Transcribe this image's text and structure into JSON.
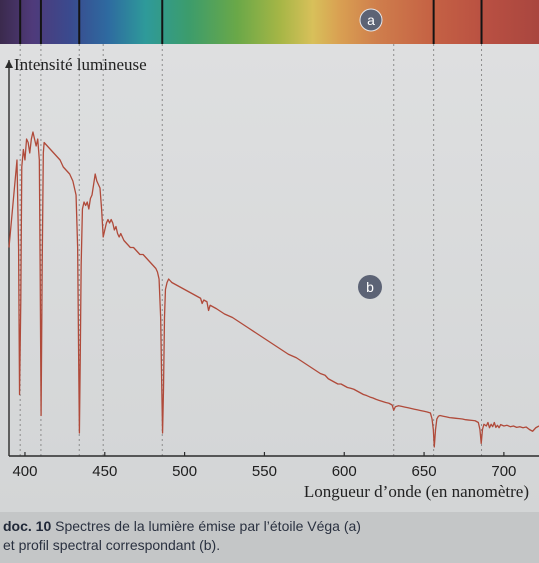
{
  "chart_data": {
    "type": "line",
    "ylabel": "Intensité lumineuse",
    "xlabel": "Longueur d’onde (en nanomètre)",
    "xlim": [
      390,
      722
    ],
    "x_ticks": [
      400,
      450,
      500,
      550,
      600,
      650,
      700
    ],
    "y_axis_ticks": false,
    "grid": false,
    "colors": {
      "curve": "#b04a3a",
      "axis": "#2b2b2b",
      "guide": "#8c8c8c",
      "marker": "#5a6475"
    },
    "spectrum_band": {
      "label": "a",
      "absorption_lines_nm": [
        397,
        410,
        434,
        486,
        656,
        686
      ]
    },
    "guide_lines_nm": [
      397,
      410,
      434,
      449,
      486,
      631,
      656,
      686
    ],
    "curve_label": "b",
    "series": [
      {
        "points": [
          [
            390,
            0.55
          ],
          [
            393,
            0.7
          ],
          [
            395,
            0.8
          ],
          [
            396,
            0.55
          ],
          [
            396.6,
            0.13
          ],
          [
            397.4,
            0.4
          ],
          [
            398,
            0.78
          ],
          [
            399,
            0.83
          ],
          [
            400,
            0.8
          ],
          [
            401,
            0.86
          ],
          [
            402,
            0.85
          ],
          [
            403,
            0.82
          ],
          [
            404,
            0.86
          ],
          [
            405,
            0.88
          ],
          [
            406,
            0.86
          ],
          [
            407,
            0.84
          ],
          [
            408,
            0.86
          ],
          [
            409,
            0.8
          ],
          [
            409.5,
            0.5
          ],
          [
            410.1,
            0.07
          ],
          [
            410.8,
            0.5
          ],
          [
            411.5,
            0.82
          ],
          [
            412,
            0.85
          ],
          [
            414,
            0.84
          ],
          [
            416,
            0.83
          ],
          [
            418,
            0.82
          ],
          [
            420,
            0.81
          ],
          [
            422,
            0.8
          ],
          [
            424,
            0.78
          ],
          [
            426,
            0.77
          ],
          [
            428,
            0.76
          ],
          [
            430,
            0.74
          ],
          [
            431,
            0.72
          ],
          [
            432,
            0.7
          ],
          [
            433,
            0.55
          ],
          [
            433.6,
            0.25
          ],
          [
            434.1,
            0.02
          ],
          [
            434.6,
            0.22
          ],
          [
            435.2,
            0.5
          ],
          [
            436,
            0.66
          ],
          [
            437,
            0.68
          ],
          [
            438,
            0.67
          ],
          [
            439,
            0.68
          ],
          [
            440,
            0.66
          ],
          [
            441,
            0.69
          ],
          [
            442,
            0.7
          ],
          [
            443,
            0.73
          ],
          [
            444,
            0.76
          ],
          [
            445,
            0.74
          ],
          [
            446,
            0.73
          ],
          [
            447,
            0.72
          ],
          [
            448,
            0.66
          ],
          [
            449,
            0.58
          ],
          [
            450,
            0.6
          ],
          [
            451,
            0.62
          ],
          [
            452,
            0.63
          ],
          [
            453,
            0.62
          ],
          [
            454,
            0.63
          ],
          [
            455,
            0.62
          ],
          [
            456,
            0.6
          ],
          [
            457,
            0.61
          ],
          [
            458,
            0.59
          ],
          [
            459,
            0.58
          ],
          [
            460,
            0.59
          ],
          [
            462,
            0.57
          ],
          [
            464,
            0.56
          ],
          [
            466,
            0.55
          ],
          [
            468,
            0.55
          ],
          [
            470,
            0.54
          ],
          [
            472,
            0.53
          ],
          [
            474,
            0.53
          ],
          [
            476,
            0.52
          ],
          [
            478,
            0.51
          ],
          [
            480,
            0.5
          ],
          [
            482,
            0.49
          ],
          [
            483,
            0.48
          ],
          [
            484,
            0.46
          ],
          [
            485,
            0.35
          ],
          [
            485.7,
            0.15
          ],
          [
            486.2,
            0.02
          ],
          [
            486.8,
            0.15
          ],
          [
            487.4,
            0.35
          ],
          [
            488,
            0.43
          ],
          [
            489,
            0.45
          ],
          [
            490,
            0.46
          ],
          [
            491,
            0.455
          ],
          [
            492,
            0.45
          ],
          [
            494,
            0.445
          ],
          [
            496,
            0.44
          ],
          [
            498,
            0.435
          ],
          [
            500,
            0.43
          ],
          [
            502,
            0.425
          ],
          [
            504,
            0.42
          ],
          [
            506,
            0.415
          ],
          [
            508,
            0.41
          ],
          [
            510,
            0.405
          ],
          [
            511,
            0.39
          ],
          [
            512,
            0.4
          ],
          [
            514,
            0.395
          ],
          [
            515,
            0.37
          ],
          [
            516,
            0.385
          ],
          [
            518,
            0.38
          ],
          [
            520,
            0.375
          ],
          [
            525,
            0.36
          ],
          [
            530,
            0.35
          ],
          [
            535,
            0.335
          ],
          [
            540,
            0.32
          ],
          [
            545,
            0.305
          ],
          [
            550,
            0.29
          ],
          [
            555,
            0.275
          ],
          [
            560,
            0.26
          ],
          [
            565,
            0.245
          ],
          [
            570,
            0.235
          ],
          [
            575,
            0.22
          ],
          [
            580,
            0.205
          ],
          [
            585,
            0.19
          ],
          [
            588,
            0.185
          ],
          [
            590,
            0.175
          ],
          [
            592,
            0.17
          ],
          [
            594,
            0.165
          ],
          [
            596,
            0.16
          ],
          [
            598,
            0.16
          ],
          [
            600,
            0.155
          ],
          [
            602,
            0.15
          ],
          [
            604,
            0.148
          ],
          [
            606,
            0.145
          ],
          [
            608,
            0.14
          ],
          [
            610,
            0.135
          ],
          [
            612,
            0.13
          ],
          [
            614,
            0.127
          ],
          [
            616,
            0.123
          ],
          [
            618,
            0.12
          ],
          [
            620,
            0.116
          ],
          [
            622,
            0.113
          ],
          [
            624,
            0.11
          ],
          [
            626,
            0.107
          ],
          [
            628,
            0.105
          ],
          [
            630,
            0.1
          ],
          [
            631,
            0.085
          ],
          [
            632,
            0.095
          ],
          [
            634,
            0.098
          ],
          [
            636,
            0.096
          ],
          [
            638,
            0.094
          ],
          [
            640,
            0.092
          ],
          [
            642,
            0.09
          ],
          [
            644,
            0.088
          ],
          [
            646,
            0.086
          ],
          [
            648,
            0.084
          ],
          [
            650,
            0.082
          ],
          [
            652,
            0.08
          ],
          [
            654,
            0.077
          ],
          [
            655,
            0.06
          ],
          [
            655.8,
            0.03
          ],
          [
            656.4,
            -0.02
          ],
          [
            657.2,
            0.03
          ],
          [
            658,
            0.06
          ],
          [
            659,
            0.068
          ],
          [
            660,
            0.07
          ],
          [
            662,
            0.068
          ],
          [
            664,
            0.066
          ],
          [
            666,
            0.064
          ],
          [
            668,
            0.063
          ],
          [
            670,
            0.062
          ],
          [
            672,
            0.061
          ],
          [
            674,
            0.06
          ],
          [
            676,
            0.058
          ],
          [
            678,
            0.057
          ],
          [
            680,
            0.056
          ],
          [
            682,
            0.055
          ],
          [
            684,
            0.05
          ],
          [
            685,
            0.03
          ],
          [
            685.8,
            -0.01
          ],
          [
            686.6,
            0.03
          ],
          [
            687.5,
            0.045
          ],
          [
            689,
            0.04
          ],
          [
            690,
            0.05
          ],
          [
            691,
            0.035
          ],
          [
            692,
            0.045
          ],
          [
            693,
            0.038
          ],
          [
            694,
            0.05
          ],
          [
            695,
            0.036
          ],
          [
            696,
            0.042
          ],
          [
            697,
            0.035
          ],
          [
            698,
            0.044
          ],
          [
            700,
            0.04
          ],
          [
            702,
            0.042
          ],
          [
            704,
            0.038
          ],
          [
            706,
            0.04
          ],
          [
            708,
            0.036
          ],
          [
            710,
            0.038
          ],
          [
            712,
            0.035
          ],
          [
            714,
            0.037
          ],
          [
            716,
            0.03
          ],
          [
            718,
            0.025
          ],
          [
            720,
            0.035
          ],
          [
            722,
            0.04
          ]
        ]
      }
    ]
  },
  "caption": {
    "label": "doc. 10",
    "line1": " Spectres de la lumière émise par l’étoile Véga (a)",
    "line2": "et profil spectral correspondant (b)."
  }
}
